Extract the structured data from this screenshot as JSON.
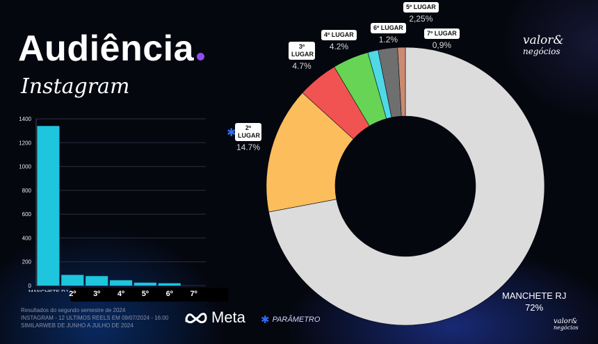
{
  "title": "Audiência",
  "subtitle": "Instagram",
  "brand_top": {
    "line1": "valor&",
    "line2": "negócios"
  },
  "brand_bottom": {
    "line1": "valor&",
    "line2": "negócios"
  },
  "footnote": [
    "Resultados do segundo semestre de 2024",
    "INSTAGRAM - 12 ULTIMOS REELS EM 09/07/2024 - 16:00",
    "SIMILARWEB DE JUNHO A JULHO DE 2024"
  ],
  "meta_logo": "Meta",
  "parametro": "PARÂMETRO",
  "colors": {
    "bar": "#1ec6dd",
    "accent_dot": "#8f4cf0",
    "asterisk": "#2e6cf0",
    "slices": [
      "#dcdcdc",
      "#fcbd5c",
      "#f15352",
      "#67d455",
      "#4fd9e6",
      "#6f6f6f",
      "#c98b72"
    ]
  },
  "chart_data": [
    {
      "type": "bar",
      "categories": [
        "MANCHETE RJ",
        "2º",
        "3º",
        "4º",
        "5º",
        "6º",
        "7º"
      ],
      "values": [
        1340,
        90,
        80,
        45,
        25,
        20,
        0
      ],
      "ylim": [
        0,
        1400
      ],
      "yticks": [
        "0",
        "200",
        "400",
        "600",
        "800",
        "1000",
        "1200",
        "1400"
      ],
      "grid": true
    },
    {
      "type": "pie",
      "style": "donut",
      "slices": [
        {
          "label": "MANCHETE RJ",
          "value": 72,
          "display": "72%"
        },
        {
          "label": "2º LUGAR",
          "value": 14.7,
          "display": "14.7%"
        },
        {
          "label": "3º LUGAR",
          "value": 4.7,
          "display": "4.7%"
        },
        {
          "label": "4º LUGAR",
          "value": 4.2,
          "display": "4.2%"
        },
        {
          "label": "6º LUGAR",
          "value": 1.2,
          "display": "1.2%"
        },
        {
          "label": "5º LUGAR",
          "value": 2.25,
          "display": "2,25%"
        },
        {
          "label": "7º LUGAR",
          "value": 0.9,
          "display": "0,9%"
        }
      ]
    }
  ]
}
